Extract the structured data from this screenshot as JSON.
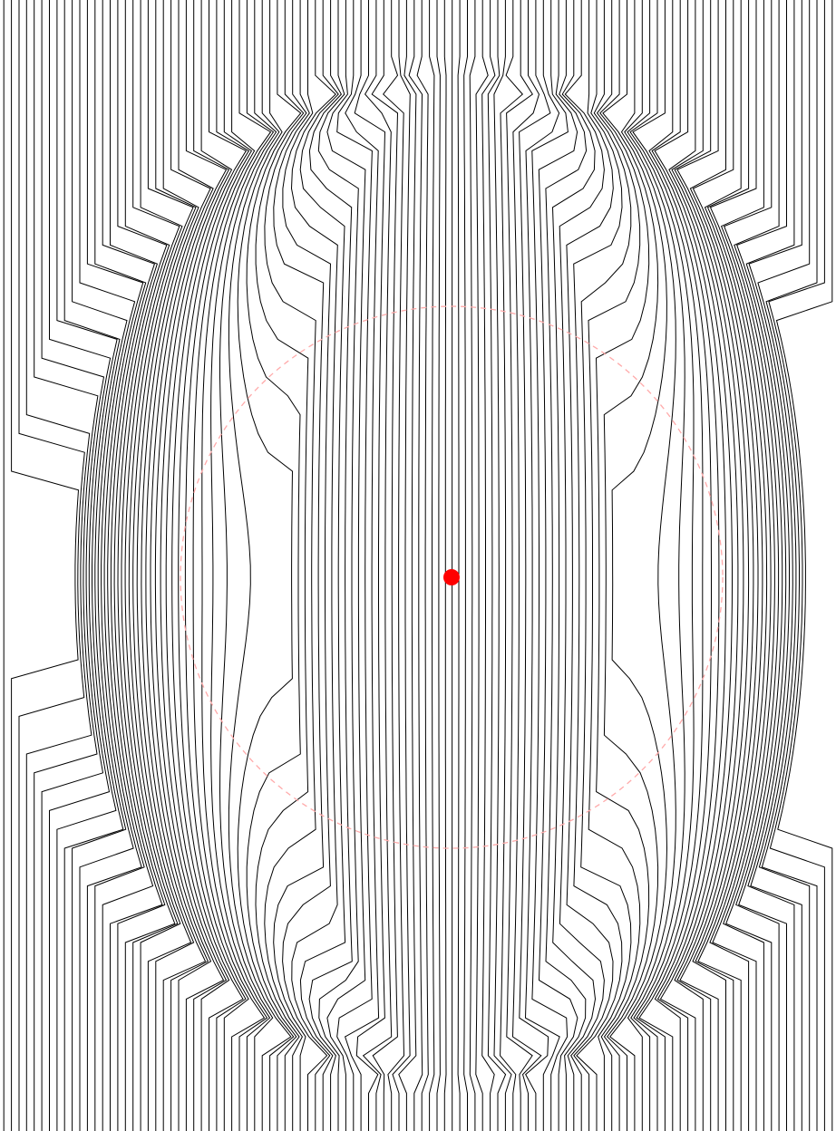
{
  "figure": {
    "background": "#ffffff",
    "line_color": "#000000",
    "line_count": 110,
    "lens_center_color": "#ff0000",
    "lens_radius_color": "#ffaaaa",
    "lens_radius_style": "dashed"
  }
}
